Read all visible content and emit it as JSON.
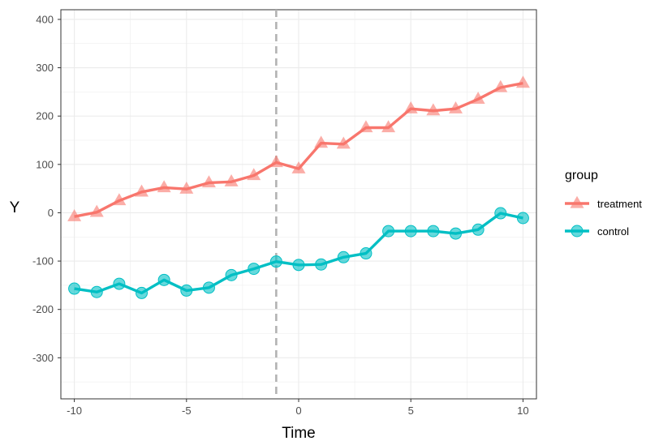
{
  "chart_data": {
    "type": "line",
    "xlabel": "Time",
    "ylabel": "Y",
    "xlim": [
      -10.6,
      10.6
    ],
    "ylim": [
      -385,
      420
    ],
    "x_ticks": [
      -10,
      -5,
      0,
      5,
      10
    ],
    "y_ticks": [
      -300,
      -200,
      -100,
      0,
      100,
      200,
      300,
      400
    ],
    "x_tick_labels": [
      "-10",
      "-5",
      "0",
      "5",
      "10"
    ],
    "y_tick_labels": [
      "-300",
      "-200",
      "-100",
      "0",
      "100",
      "200",
      "300",
      "400"
    ],
    "grid": true,
    "vline": {
      "x": -1,
      "style": "dashed",
      "color": "#b3b3b3"
    },
    "legend": {
      "title": "group",
      "position": "right",
      "entries": [
        "treatment",
        "control"
      ]
    },
    "x": [
      -10,
      -9,
      -8,
      -7,
      -6,
      -5,
      -4,
      -3,
      -2,
      -1,
      0,
      1,
      2,
      3,
      4,
      5,
      6,
      7,
      8,
      9,
      10
    ],
    "series": [
      {
        "name": "treatment",
        "color": "#F8766D",
        "marker": "triangle",
        "values": [
          -8,
          1,
          25,
          43,
          52,
          49,
          62,
          64,
          77,
          104,
          91,
          144,
          142,
          176,
          176,
          215,
          211,
          215,
          235,
          259,
          268
        ]
      },
      {
        "name": "control",
        "color": "#00BFC4",
        "marker": "circle",
        "values": [
          -157,
          -164,
          -147,
          -166,
          -139,
          -161,
          -155,
          -129,
          -116,
          -101,
          -108,
          -107,
          -92,
          -84,
          -38,
          -38,
          -38,
          -43,
          -35,
          -1,
          -11
        ]
      }
    ]
  }
}
